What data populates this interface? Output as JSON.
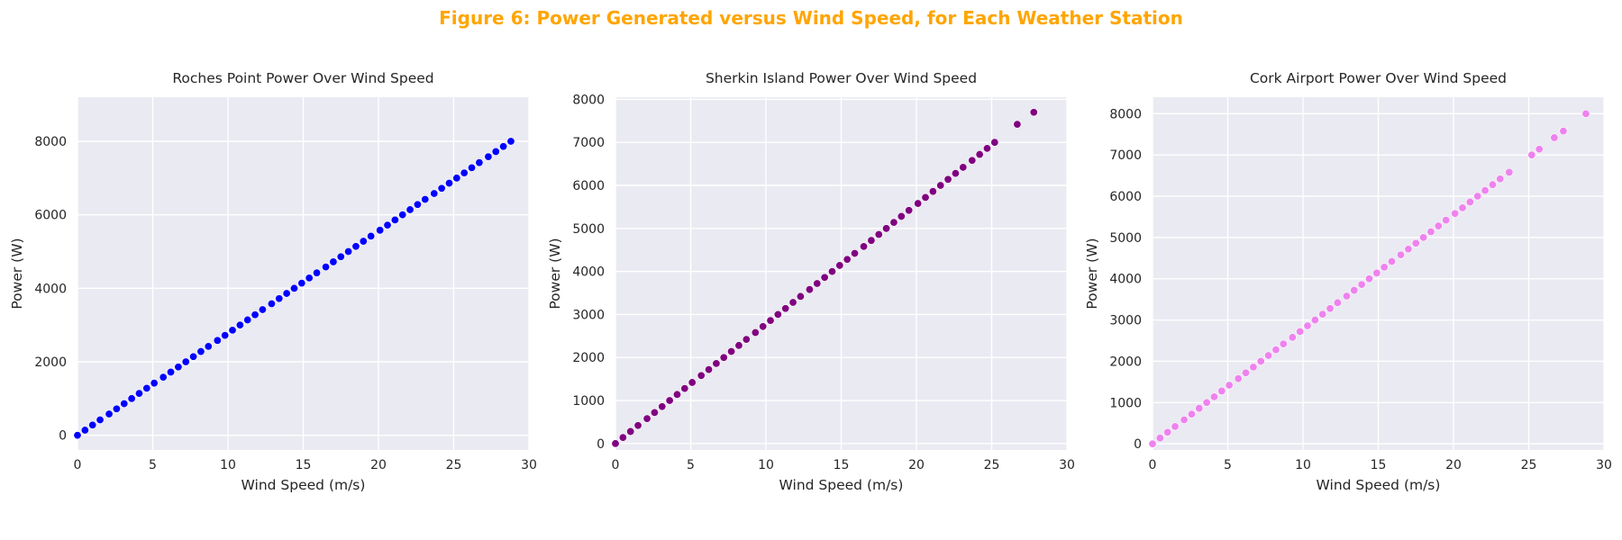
{
  "figure": {
    "title": "Figure 6: Power Generated versus Wind Speed, for Each Weather Station",
    "title_color": "#FFA500",
    "background": "#EAEAF2",
    "grid_color": "#FFFFFF",
    "text_color": "#262626"
  },
  "chart_data": [
    {
      "type": "scatter",
      "title": "Roches Point Power Over Wind Speed",
      "xlabel": "Wind Speed (m/s)",
      "ylabel": "Power (W)",
      "color": "#0000FF",
      "xlim": [
        0,
        30
      ],
      "ylim": [
        -400,
        9200
      ],
      "xticks": [
        0,
        5,
        10,
        15,
        20,
        25,
        30
      ],
      "yticks": [
        0,
        2000,
        4000,
        6000,
        8000
      ],
      "grid": true,
      "series": [
        {
          "x": [
            0,
            0.5,
            1.0,
            1.5,
            2.1,
            2.6,
            3.1,
            3.6,
            4.1,
            4.6,
            5.1,
            5.7,
            6.2,
            6.7,
            7.2,
            7.7,
            8.2,
            8.7,
            9.3,
            9.8,
            10.3,
            10.8,
            11.3,
            11.8,
            12.3,
            12.9,
            13.4,
            13.9,
            14.4,
            14.9,
            15.4,
            15.9,
            16.5,
            17.0,
            17.5,
            18.0,
            18.5,
            19.0,
            19.5,
            20.1,
            20.6,
            21.1,
            21.6,
            22.1,
            22.6,
            23.1,
            23.7,
            24.2,
            24.7,
            25.2,
            25.7,
            26.2,
            26.7,
            27.3,
            27.8,
            28.3,
            28.8
          ],
          "y": [
            0,
            140,
            280,
            420,
            580,
            720,
            860,
            1000,
            1140,
            1280,
            1420,
            1580,
            1720,
            1860,
            2000,
            2140,
            2280,
            2420,
            2580,
            2720,
            2860,
            3000,
            3140,
            3280,
            3420,
            3580,
            3720,
            3860,
            4000,
            4140,
            4280,
            4420,
            4580,
            4720,
            4860,
            5000,
            5140,
            5280,
            5420,
            5580,
            5720,
            5860,
            6000,
            6140,
            6280,
            6420,
            6580,
            6720,
            6860,
            7000,
            7140,
            7280,
            7420,
            7580,
            7720,
            7860,
            8000
          ]
        }
      ]
    },
    {
      "type": "scatter",
      "title": "Sherkin Island Power Over Wind Speed",
      "xlabel": "Wind Speed (m/s)",
      "ylabel": "Power (W)",
      "color": "#800080",
      "xlim": [
        0,
        30
      ],
      "ylim": [
        -150,
        8050
      ],
      "xticks": [
        0,
        5,
        10,
        15,
        20,
        25,
        30
      ],
      "yticks": [
        0,
        1000,
        2000,
        3000,
        4000,
        5000,
        6000,
        7000,
        8000
      ],
      "grid": true,
      "series": [
        {
          "x": [
            0,
            0.5,
            1.0,
            1.5,
            2.1,
            2.6,
            3.1,
            3.6,
            4.1,
            4.6,
            5.1,
            5.7,
            6.2,
            6.7,
            7.2,
            7.7,
            8.2,
            8.7,
            9.3,
            9.8,
            10.3,
            10.8,
            11.3,
            11.8,
            12.3,
            12.9,
            13.4,
            13.9,
            14.4,
            14.9,
            15.4,
            15.9,
            16.5,
            17.0,
            17.5,
            18.0,
            18.5,
            19.0,
            19.5,
            20.1,
            20.6,
            21.1,
            21.6,
            22.1,
            22.6,
            23.1,
            23.7,
            24.2,
            24.7,
            25.2,
            26.7,
            27.8
          ],
          "y": [
            0,
            140,
            280,
            420,
            580,
            720,
            860,
            1000,
            1140,
            1280,
            1420,
            1580,
            1720,
            1860,
            2000,
            2140,
            2280,
            2420,
            2580,
            2720,
            2860,
            3000,
            3140,
            3280,
            3420,
            3580,
            3720,
            3860,
            4000,
            4140,
            4280,
            4420,
            4580,
            4720,
            4860,
            5000,
            5140,
            5280,
            5420,
            5580,
            5720,
            5860,
            6000,
            6140,
            6280,
            6420,
            6580,
            6720,
            6860,
            7000,
            7420,
            7700
          ]
        }
      ]
    },
    {
      "type": "scatter",
      "title": "Cork Airport Power Over Wind Speed",
      "xlabel": "Wind Speed (m/s)",
      "ylabel": "Power (W)",
      "color": "#EE82EE",
      "xlim": [
        0,
        30
      ],
      "ylim": [
        -150,
        8400
      ],
      "xticks": [
        0,
        5,
        10,
        15,
        20,
        25,
        30
      ],
      "yticks": [
        0,
        1000,
        2000,
        3000,
        4000,
        5000,
        6000,
        7000,
        8000
      ],
      "grid": true,
      "series": [
        {
          "x": [
            0,
            0.5,
            1.0,
            1.5,
            2.1,
            2.6,
            3.1,
            3.6,
            4.1,
            4.6,
            5.1,
            5.7,
            6.2,
            6.7,
            7.2,
            7.7,
            8.2,
            8.7,
            9.3,
            9.8,
            10.3,
            10.8,
            11.3,
            11.8,
            12.3,
            12.9,
            13.4,
            13.9,
            14.4,
            14.9,
            15.4,
            15.9,
            16.5,
            17.0,
            17.5,
            18.0,
            18.5,
            19.0,
            19.5,
            20.1,
            20.6,
            21.1,
            21.6,
            22.1,
            22.6,
            23.1,
            23.7,
            25.2,
            25.7,
            26.7,
            27.3,
            28.8
          ],
          "y": [
            0,
            140,
            280,
            420,
            580,
            720,
            860,
            1000,
            1140,
            1280,
            1420,
            1580,
            1720,
            1860,
            2000,
            2140,
            2280,
            2420,
            2580,
            2720,
            2860,
            3000,
            3140,
            3280,
            3420,
            3580,
            3720,
            3860,
            4000,
            4140,
            4280,
            4420,
            4580,
            4720,
            4860,
            5000,
            5140,
            5280,
            5420,
            5580,
            5720,
            5860,
            6000,
            6140,
            6280,
            6420,
            6580,
            7000,
            7140,
            7420,
            7580,
            8000
          ]
        }
      ]
    }
  ]
}
